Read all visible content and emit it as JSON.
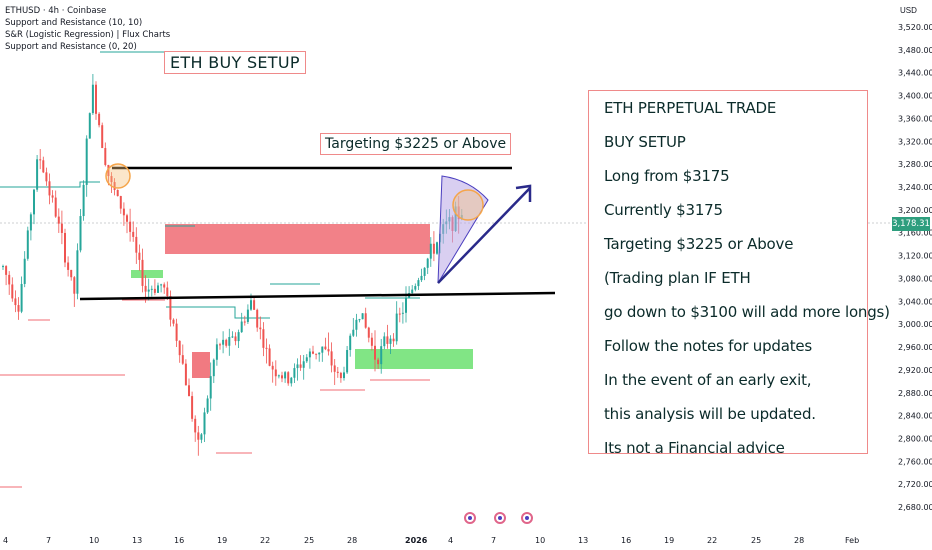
{
  "header": {
    "symbol_line": "ETHUSD · 4h · Coinbase",
    "indicators": [
      "Support and Resistance (10, 10)",
      "S&R (Logistic Regression) | Flux Charts",
      "Support and Resistance (0, 20)"
    ],
    "currency": "USD"
  },
  "annotations": {
    "title": "ETH BUY SETUP",
    "target_label": "Targeting $3225 or Above",
    "notes": [
      "ETH PERPETUAL TRADE",
      "BUY SETUP",
      "Long from $3175",
      "Currently $3175",
      "Targeting $3225 or Above",
      "(Trading plan IF ETH",
      "go down to $3100 will add more longs)",
      "Follow the notes for updates",
      "In the event of an early exit,",
      "this analysis will be updated.",
      "Its not a Financial advice"
    ]
  },
  "current_price_label": "3,178.31",
  "colors": {
    "up": "#26a69a",
    "down": "#ef5350",
    "supply_zone": "#f06b73",
    "demand_zone": "#6be070",
    "support_line": "#000000",
    "arrow": "#2a2a8a",
    "circle": "#f5a54a",
    "label_border": "#ef8a8a"
  },
  "chart_data": {
    "type": "candlestick",
    "title": "ETHUSD · 4h · Coinbase",
    "y_unit": "USD",
    "ylim": [
      2660,
      3540
    ],
    "y_ticks": [
      "3,520.00",
      "3,480.00",
      "3,440.00",
      "3,400.00",
      "3,360.00",
      "3,320.00",
      "3,280.00",
      "3,240.00",
      "3,200.00",
      "3,160.00",
      "3,120.00",
      "3,080.00",
      "3,040.00",
      "3,000.00",
      "2,960.00",
      "2,920.00",
      "2,880.00",
      "2,840.00",
      "2,800.00",
      "2,760.00",
      "2,720.00",
      "2,680.00"
    ],
    "x_ticks": [
      "4",
      "7",
      "10",
      "13",
      "16",
      "19",
      "22",
      "25",
      "28",
      "2026",
      "4",
      "7",
      "10",
      "13",
      "16",
      "19",
      "22",
      "25",
      "28",
      "Feb"
    ],
    "grid": false,
    "price_path": [
      [
        3100,
        3020
      ],
      [
        3060,
        3300
      ],
      [
        3300,
        3190
      ],
      [
        3190,
        3050
      ],
      [
        3050,
        3420
      ],
      [
        3420,
        3250
      ],
      [
        3250,
        3180
      ],
      [
        3180,
        3060
      ],
      [
        3060,
        3070
      ],
      [
        3070,
        2950
      ],
      [
        2950,
        2780
      ],
      [
        2780,
        2960
      ],
      [
        2960,
        2970
      ],
      [
        2970,
        3040
      ],
      [
        3040,
        2930
      ],
      [
        2930,
        2900
      ],
      [
        2900,
        2940
      ],
      [
        2940,
        2960
      ],
      [
        2960,
        2900
      ],
      [
        2900,
        3030
      ],
      [
        3030,
        2940
      ],
      [
        2940,
        2990
      ],
      [
        2990,
        3060
      ],
      [
        3060,
        3120
      ],
      [
        3120,
        3175
      ],
      [
        3175,
        3200
      ]
    ],
    "levels": {
      "resistance_top": 3270,
      "support_trendline_start": 3040,
      "support_trendline_end": 3055,
      "supply_zone": [
        3125,
        3185
      ],
      "demand_zone_left": [
        3075,
        3085
      ],
      "demand_zone_right": [
        2905,
        2950
      ],
      "red_zone_low": [
        2895,
        2955
      ]
    },
    "target": 3225,
    "entry": 3175,
    "current": 3178.31
  }
}
